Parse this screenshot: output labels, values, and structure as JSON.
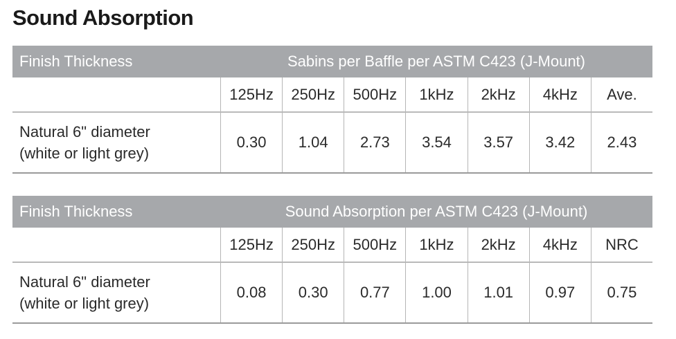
{
  "title": "Sound Absorption",
  "tables": [
    {
      "header": [
        "Finish Thickness",
        "Sabins per Baffle per ASTM C423 (J-Mount)"
      ],
      "columns": [
        "125Hz",
        "250Hz",
        "500Hz",
        "1kHz",
        "2kHz",
        "4kHz",
        "Ave."
      ],
      "rows": [
        {
          "label": [
            "Natural 6\" diameter",
            "(white or light grey)"
          ],
          "values": [
            "0.30",
            "1.04",
            "2.73",
            "3.54",
            "3.57",
            "3.42",
            "2.43"
          ]
        }
      ]
    },
    {
      "header": [
        "Finish Thickness",
        "Sound Absorption per ASTM C423 (J-Mount)"
      ],
      "columns": [
        "125Hz",
        "250Hz",
        "500Hz",
        "1kHz",
        "2kHz",
        "4kHz",
        "NRC"
      ],
      "rows": [
        {
          "label": [
            "Natural 6\" diameter",
            "(white or light grey)"
          ],
          "values": [
            "0.08",
            "0.30",
            "0.77",
            "1.00",
            "1.01",
            "0.97",
            "0.75"
          ]
        }
      ]
    }
  ]
}
